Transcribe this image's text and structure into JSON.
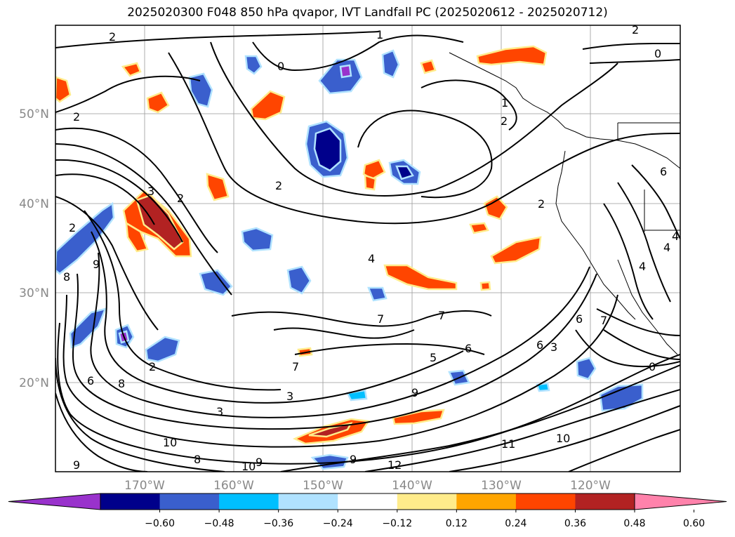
{
  "title": "2025020300 F048 850 hPa qvapor, IVT Landfall PC (2025020612 - 2025020712)",
  "map": {
    "lon_ticks": [
      "170°W",
      "160°W",
      "150°W",
      "140°W",
      "130°W",
      "120°W"
    ],
    "lat_ticks": [
      "50°N",
      "40°N",
      "30°N",
      "20°N"
    ],
    "contour_labels": [
      "2",
      "2",
      "2",
      "2",
      "1",
      "0",
      "0",
      "1",
      "2",
      "2",
      "3",
      "2",
      "2",
      "4",
      "7",
      "7",
      "7",
      "9",
      "9",
      "5",
      "6",
      "6",
      "8",
      "6",
      "3",
      "3",
      "9",
      "10",
      "11",
      "10",
      "12",
      "9",
      "8",
      "10",
      "9",
      "3",
      "2",
      "6",
      "8",
      "4",
      "4",
      "4",
      "7",
      "6",
      "0"
    ]
  },
  "colorbar": {
    "colors": [
      "#9932cc",
      "#00008b",
      "#3a5fcd",
      "#00bfff",
      "#b0e2ff",
      "#ffffff",
      "#ffec8b",
      "#ffa500",
      "#ff4500",
      "#b22222",
      "#ff82ab"
    ],
    "labels": [
      "−0.60",
      "−0.48",
      "−0.36",
      "−0.24",
      "−0.12",
      "0.12",
      "0.24",
      "0.36",
      "0.48",
      "0.60"
    ]
  }
}
